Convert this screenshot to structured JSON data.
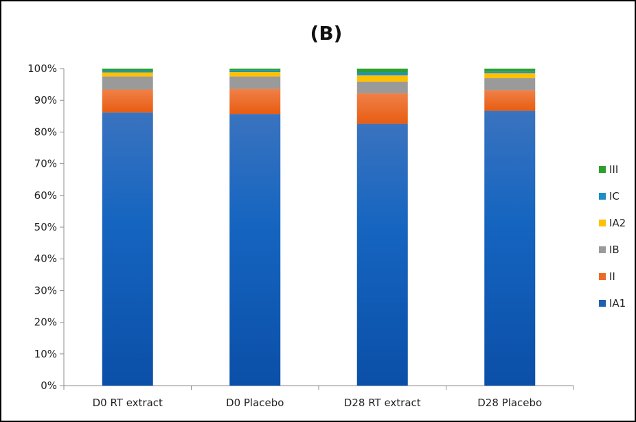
{
  "chart_data": {
    "type": "bar",
    "stacked": true,
    "percent_stacked": true,
    "title": "(B)",
    "xlabel": "",
    "ylabel": "",
    "ylim": [
      0,
      100
    ],
    "yticks": [
      "0%",
      "10%",
      "20%",
      "30%",
      "40%",
      "50%",
      "60%",
      "70%",
      "80%",
      "90%",
      "100%"
    ],
    "categories": [
      "D0 RT extract",
      "D0 Placebo",
      "D28 RT extract",
      "D28 Placebo"
    ],
    "series": [
      {
        "name": "IA1",
        "color": "#1f5fb4",
        "values": [
          86.2,
          85.7,
          82.6,
          86.7
        ]
      },
      {
        "name": "II",
        "color": "#ed6a24",
        "values": [
          7.2,
          7.9,
          9.6,
          6.5
        ]
      },
      {
        "name": "IB",
        "color": "#9a9a9a",
        "values": [
          4.1,
          3.9,
          3.7,
          3.8
        ]
      },
      {
        "name": "IA2",
        "color": "#ffc000",
        "values": [
          1.3,
          1.4,
          2.0,
          1.6
        ]
      },
      {
        "name": "IC",
        "color": "#1b8fc7",
        "values": [
          0.5,
          0.5,
          0.9,
          0.5
        ]
      },
      {
        "name": "III",
        "color": "#2ca02c",
        "values": [
          0.7,
          0.6,
          1.2,
          0.9
        ]
      }
    ],
    "grid": false,
    "legend_position": "right",
    "legend_order": [
      "III",
      "IC",
      "IA2",
      "IB",
      "II",
      "IA1"
    ]
  }
}
